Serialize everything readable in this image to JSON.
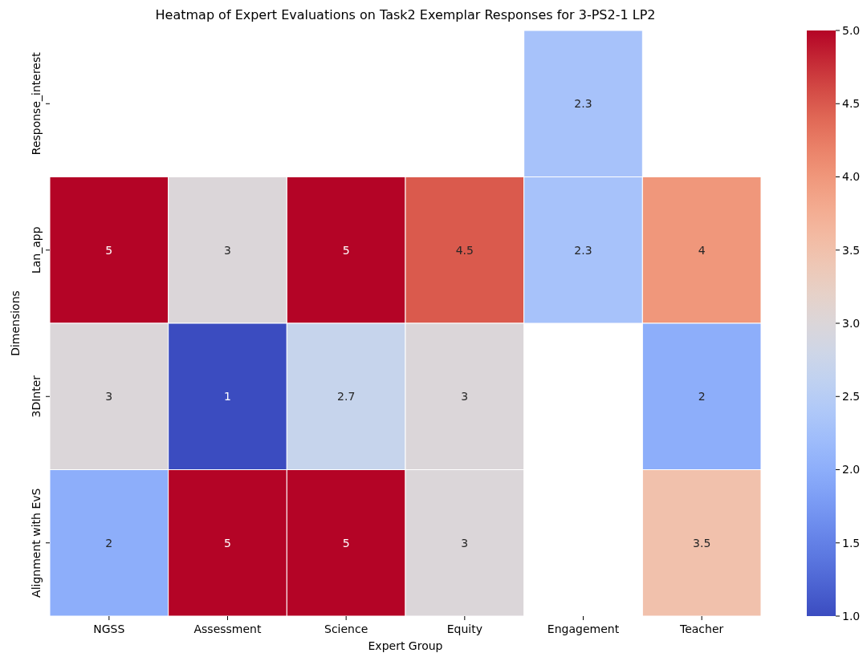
{
  "chart_data": {
    "type": "heatmap",
    "title": "Heatmap of Expert Evaluations on Task2 Exemplar Responses for 3-PS2-1 LP2",
    "xlabel": "Expert Group",
    "ylabel": "Dimensions",
    "categories": [
      "NGSS",
      "Assessment",
      "Science",
      "Equity",
      "Engagement",
      "Teacher"
    ],
    "y_categories": [
      "Response_interest",
      "Lan_app",
      "3DInter",
      "Alignment with EvS"
    ],
    "cells": [
      [
        null,
        null,
        null,
        null,
        2.3,
        null
      ],
      [
        5,
        3,
        5,
        4.5,
        2.3,
        4
      ],
      [
        3,
        1,
        2.7,
        3,
        null,
        2
      ],
      [
        2,
        5,
        5,
        3,
        null,
        3.5
      ]
    ],
    "data_labels": true,
    "clim": [
      1,
      5
    ],
    "cticks": [
      {
        "value": 1,
        "label": "1.0"
      },
      {
        "value": 1.5,
        "label": "1.5"
      },
      {
        "value": 2,
        "label": "2.0"
      },
      {
        "value": 2.5,
        "label": "2.5"
      },
      {
        "value": 3,
        "label": "3.0"
      },
      {
        "value": 3.5,
        "label": "3.5"
      },
      {
        "value": 4,
        "label": "4.0"
      },
      {
        "value": 4.5,
        "label": "4.5"
      },
      {
        "value": 5,
        "label": "5.0"
      }
    ]
  }
}
